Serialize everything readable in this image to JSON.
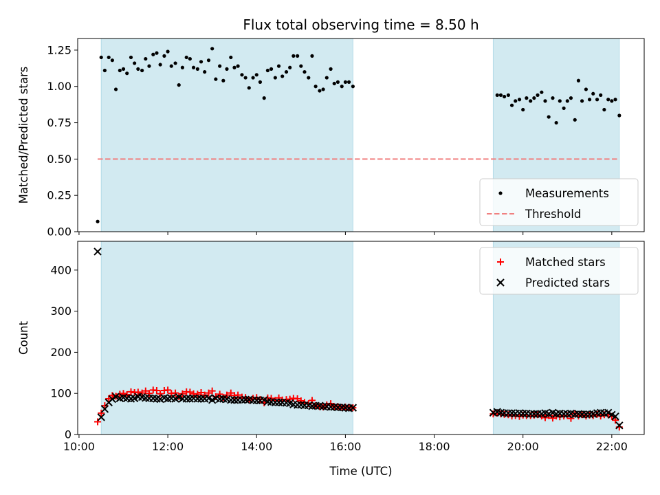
{
  "chart_data": [
    {
      "type": "scatter",
      "title": "Flux total observing time = 8.50 h",
      "xlabel": "",
      "ylabel": "Matched/Predicted stars",
      "xlim": [
        9.97,
        22.73
      ],
      "ylim": [
        0.0,
        1.33
      ],
      "yticks": [
        0.0,
        0.25,
        0.5,
        0.75,
        1.0,
        1.25
      ],
      "ytick_labels": [
        "0.00",
        "0.25",
        "0.50",
        "0.75",
        "1.00",
        "1.25"
      ],
      "grid": false,
      "legend_position": "bottom-right",
      "shaded_intervals_utc_hours": [
        [
          10.5,
          16.17
        ],
        [
          19.33,
          22.17
        ]
      ],
      "shade_color": "#add8e6",
      "series": [
        {
          "name": "Measurements",
          "style": "dot",
          "color": "#000000",
          "x": [
            10.42,
            10.5,
            10.58,
            10.67,
            10.75,
            10.83,
            10.92,
            11.0,
            11.08,
            11.17,
            11.25,
            11.33,
            11.42,
            11.5,
            11.58,
            11.67,
            11.75,
            11.83,
            11.92,
            12.0,
            12.08,
            12.17,
            12.25,
            12.33,
            12.42,
            12.5,
            12.58,
            12.67,
            12.75,
            12.83,
            12.92,
            13.0,
            13.08,
            13.17,
            13.25,
            13.33,
            13.42,
            13.5,
            13.58,
            13.67,
            13.75,
            13.83,
            13.92,
            14.0,
            14.08,
            14.17,
            14.25,
            14.33,
            14.42,
            14.5,
            14.58,
            14.67,
            14.75,
            14.83,
            14.92,
            15.0,
            15.08,
            15.17,
            15.25,
            15.33,
            15.42,
            15.5,
            15.58,
            15.67,
            15.75,
            15.83,
            15.92,
            16.0,
            16.08,
            16.17,
            19.42,
            19.5,
            19.58,
            19.67,
            19.75,
            19.83,
            19.92,
            20.0,
            20.08,
            20.17,
            20.25,
            20.33,
            20.42,
            20.5,
            20.58,
            20.67,
            20.75,
            20.83,
            20.92,
            21.0,
            21.08,
            21.17,
            21.25,
            21.33,
            21.42,
            21.5,
            21.58,
            21.67,
            21.75,
            21.83,
            21.92,
            22.0,
            22.08,
            22.17
          ],
          "y": [
            0.07,
            1.2,
            1.11,
            1.2,
            1.18,
            0.98,
            1.11,
            1.12,
            1.09,
            1.2,
            1.16,
            1.12,
            1.11,
            1.19,
            1.14,
            1.22,
            1.23,
            1.15,
            1.21,
            1.24,
            1.14,
            1.16,
            1.01,
            1.13,
            1.2,
            1.19,
            1.13,
            1.12,
            1.17,
            1.1,
            1.18,
            1.26,
            1.05,
            1.14,
            1.04,
            1.12,
            1.2,
            1.13,
            1.14,
            1.08,
            1.06,
            0.99,
            1.06,
            1.08,
            1.03,
            0.92,
            1.11,
            1.12,
            1.06,
            1.14,
            1.07,
            1.1,
            1.13,
            1.21,
            1.21,
            1.14,
            1.1,
            1.06,
            1.21,
            1.0,
            0.97,
            0.98,
            1.06,
            1.12,
            1.02,
            1.03,
            1.0,
            1.03,
            1.03,
            1.0,
            0.94,
            0.94,
            0.93,
            0.94,
            0.87,
            0.9,
            0.91,
            0.84,
            0.92,
            0.9,
            0.92,
            0.94,
            0.96,
            0.9,
            0.79,
            0.92,
            0.75,
            0.9,
            0.85,
            0.9,
            0.92,
            0.77,
            1.04,
            0.9,
            0.98,
            0.91,
            0.95,
            0.91,
            0.94,
            0.84,
            0.91,
            0.9,
            0.91,
            0.8
          ]
        },
        {
          "name": "Threshold",
          "style": "dashed",
          "color": "#f08080",
          "x": [
            10.42,
            22.17
          ],
          "y": [
            0.5,
            0.5
          ]
        }
      ]
    },
    {
      "type": "scatter",
      "title": "",
      "xlabel": "Time (UTC)",
      "ylabel": "Count",
      "xlim": [
        9.97,
        22.73
      ],
      "ylim": [
        0,
        470
      ],
      "xticks": [
        10,
        12,
        14,
        16,
        18,
        20,
        22
      ],
      "xtick_labels": [
        "10:00",
        "12:00",
        "14:00",
        "16:00",
        "18:00",
        "20:00",
        "22:00"
      ],
      "yticks": [
        0,
        100,
        200,
        300,
        400
      ],
      "ytick_labels": [
        "0",
        "100",
        "200",
        "300",
        "400"
      ],
      "grid": false,
      "legend_position": "top-right",
      "shaded_intervals_utc_hours": [
        [
          10.5,
          16.17
        ],
        [
          19.33,
          22.17
        ]
      ],
      "shade_color": "#add8e6",
      "series": [
        {
          "name": "Matched stars",
          "marker": "plus",
          "color": "#ff0000",
          "x": [
            10.42,
            10.5,
            10.58,
            10.67,
            10.75,
            10.83,
            10.92,
            11.0,
            11.08,
            11.17,
            11.25,
            11.33,
            11.42,
            11.5,
            11.58,
            11.67,
            11.75,
            11.83,
            11.92,
            12.0,
            12.08,
            12.17,
            12.25,
            12.33,
            12.42,
            12.5,
            12.58,
            12.67,
            12.75,
            12.83,
            12.92,
            13.0,
            13.08,
            13.17,
            13.25,
            13.33,
            13.42,
            13.5,
            13.58,
            13.67,
            13.75,
            13.83,
            13.92,
            14.0,
            14.08,
            14.17,
            14.25,
            14.33,
            14.42,
            14.5,
            14.58,
            14.67,
            14.75,
            14.83,
            14.92,
            15.0,
            15.08,
            15.17,
            15.25,
            15.33,
            15.42,
            15.5,
            15.58,
            15.67,
            15.75,
            15.83,
            15.92,
            16.0,
            16.08,
            16.17,
            19.33,
            19.42,
            19.5,
            19.58,
            19.67,
            19.75,
            19.83,
            19.92,
            20.0,
            20.08,
            20.17,
            20.25,
            20.33,
            20.42,
            20.5,
            20.58,
            20.67,
            20.75,
            20.83,
            20.92,
            21.0,
            21.08,
            21.17,
            21.25,
            21.33,
            21.42,
            21.5,
            21.58,
            21.67,
            21.75,
            21.83,
            21.92,
            22.0,
            22.08,
            22.17
          ],
          "y": [
            31,
            52,
            70,
            87,
            95,
            93,
            98,
            100,
            97,
            104,
            102,
            103,
            101,
            106,
            100,
            108,
            107,
            99,
            107,
            108,
            100,
            101,
            92,
            99,
            104,
            103,
            99,
            98,
            102,
            96,
            101,
            106,
            92,
            98,
            90,
            96,
            101,
            95,
            96,
            91,
            90,
            84,
            88,
            90,
            85,
            77,
            89,
            88,
            83,
            89,
            84,
            85,
            86,
            88,
            87,
            82,
            78,
            75,
            83,
            70,
            68,
            67,
            72,
            75,
            68,
            68,
            66,
            67,
            66,
            65,
            50,
            52,
            50,
            49,
            48,
            45,
            46,
            44,
            47,
            46,
            46,
            47,
            48,
            45,
            41,
            46,
            40,
            45,
            43,
            45,
            46,
            39,
            51,
            45,
            48,
            45,
            47,
            46,
            49,
            45,
            48,
            48,
            44,
            35,
            18
          ]
        },
        {
          "name": "Predicted stars",
          "marker": "x",
          "color": "#000000",
          "x": [
            10.42,
            10.5,
            10.58,
            10.67,
            10.75,
            10.83,
            10.92,
            11.0,
            11.08,
            11.17,
            11.25,
            11.33,
            11.42,
            11.5,
            11.58,
            11.67,
            11.75,
            11.83,
            11.92,
            12.0,
            12.08,
            12.17,
            12.25,
            12.33,
            12.42,
            12.5,
            12.58,
            12.67,
            12.75,
            12.83,
            12.92,
            13.0,
            13.08,
            13.17,
            13.25,
            13.33,
            13.42,
            13.5,
            13.58,
            13.67,
            13.75,
            13.83,
            13.92,
            14.0,
            14.08,
            14.17,
            14.25,
            14.33,
            14.42,
            14.5,
            14.58,
            14.67,
            14.75,
            14.83,
            14.92,
            15.0,
            15.08,
            15.17,
            15.25,
            15.33,
            15.42,
            15.5,
            15.58,
            15.67,
            15.75,
            15.83,
            15.92,
            16.0,
            16.08,
            16.17,
            19.33,
            19.42,
            19.5,
            19.58,
            19.67,
            19.75,
            19.83,
            19.92,
            20.0,
            20.08,
            20.17,
            20.25,
            20.33,
            20.42,
            20.5,
            20.58,
            20.67,
            20.75,
            20.83,
            20.92,
            21.0,
            21.08,
            21.17,
            21.25,
            21.33,
            21.42,
            21.5,
            21.58,
            21.67,
            21.75,
            21.83,
            21.92,
            22.0,
            22.08,
            22.17
          ],
          "y": [
            445,
            42,
            62,
            78,
            86,
            92,
            88,
            90,
            88,
            87,
            88,
            92,
            91,
            89,
            88,
            88,
            87,
            86,
            89,
            87,
            88,
            87,
            91,
            87,
            87,
            87,
            88,
            87,
            87,
            87,
            88,
            84,
            88,
            86,
            87,
            86,
            84,
            84,
            84,
            84,
            85,
            85,
            83,
            83,
            83,
            84,
            80,
            79,
            78,
            78,
            78,
            77,
            76,
            73,
            72,
            72,
            71,
            71,
            69,
            70,
            70,
            68,
            68,
            67,
            67,
            66,
            66,
            65,
            64,
            65,
            53,
            55,
            53,
            52,
            52,
            52,
            51,
            52,
            51,
            51,
            50,
            50,
            50,
            50,
            52,
            50,
            53,
            50,
            51,
            50,
            50,
            51,
            49,
            50,
            49,
            49,
            49,
            50,
            52,
            53,
            52,
            53,
            48,
            44,
            22
          ]
        }
      ]
    }
  ]
}
